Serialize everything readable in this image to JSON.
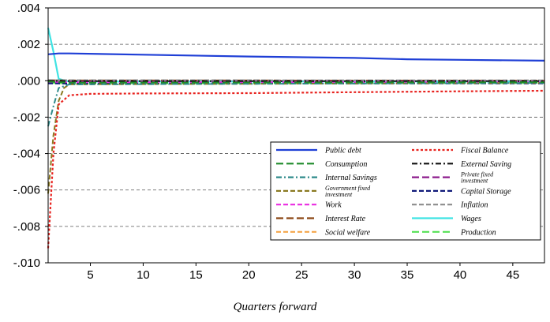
{
  "chart_data": {
    "type": "line",
    "xlabel": "Quarters forward",
    "ylabel": "",
    "title": "",
    "xlim": [
      1,
      48
    ],
    "ylim": [
      -0.01,
      0.004
    ],
    "xticks": [
      5,
      10,
      15,
      20,
      25,
      30,
      35,
      40,
      45
    ],
    "xtick_labels": [
      "5",
      "10",
      "15",
      "20",
      "25",
      "30",
      "35",
      "40",
      "45"
    ],
    "yticks": [
      0.004,
      0.002,
      0.0,
      -0.002,
      -0.004,
      -0.006,
      -0.008,
      -0.01
    ],
    "ytick_labels": [
      ".004",
      ".002",
      ".000",
      "-.002",
      "-.004",
      "-.006",
      "-.008",
      "-.010"
    ],
    "grid": "horizontal dashed",
    "legend_position": "bottom-right",
    "series": [
      {
        "name": "Public debt",
        "color": "#1f3fd6",
        "dash": "solid",
        "points": [
          [
            1,
            0.00145
          ],
          [
            2,
            0.0015
          ],
          [
            3,
            0.0015
          ],
          [
            10,
            0.00143
          ],
          [
            20,
            0.00133
          ],
          [
            30,
            0.00125
          ],
          [
            35,
            0.00118
          ],
          [
            40,
            0.00115
          ],
          [
            48,
            0.0011
          ]
        ]
      },
      {
        "name": "Fiscal Balance",
        "color": "#e8231f",
        "dash": "dot",
        "points": [
          [
            1,
            -0.0092
          ],
          [
            1.5,
            -0.004
          ],
          [
            2,
            -0.0013
          ],
          [
            3,
            -0.0008
          ],
          [
            5,
            -0.00072
          ],
          [
            10,
            -0.0007
          ],
          [
            20,
            -0.00068
          ],
          [
            30,
            -0.00063
          ],
          [
            40,
            -0.00058
          ],
          [
            48,
            -0.00055
          ]
        ]
      },
      {
        "name": "Consumption",
        "color": "#1f8a2a",
        "dash": "longdash",
        "points": [
          [
            1,
            -5e-05
          ],
          [
            3,
            -0.0001
          ],
          [
            48,
            -8e-05
          ]
        ]
      },
      {
        "name": "External Saving",
        "color": "#111111",
        "dash": "dashdot",
        "points": [
          [
            1,
            0.0
          ],
          [
            3,
            -2e-05
          ],
          [
            48,
            -2e-05
          ]
        ]
      },
      {
        "name": "Internal Savings",
        "color": "#2e8a8a",
        "dash": "dashdot",
        "points": [
          [
            1,
            -0.0025
          ],
          [
            1.5,
            -0.0014
          ],
          [
            2,
            -0.0004
          ],
          [
            3,
            -0.0002
          ],
          [
            48,
            -0.00012
          ]
        ]
      },
      {
        "name": "Private fixed investment",
        "color": "#8b1a8b",
        "dash": "longdash",
        "points": [
          [
            1,
            -5e-05
          ],
          [
            48,
            -4e-05
          ]
        ]
      },
      {
        "name": "Government fixed investment",
        "color": "#8a7a22",
        "dash": "dash",
        "points": [
          [
            1,
            -0.0062
          ],
          [
            1.5,
            -0.003
          ],
          [
            2,
            -0.0011
          ],
          [
            2.5,
            -0.0004
          ],
          [
            3,
            -0.0002
          ],
          [
            48,
            -0.00012
          ]
        ]
      },
      {
        "name": "Capital Storage",
        "color": "#101a7a",
        "dash": "dash",
        "points": [
          [
            1,
            -0.00015
          ],
          [
            3,
            -0.00016
          ],
          [
            48,
            -0.00015
          ]
        ]
      },
      {
        "name": "Work",
        "color": "#e92be0",
        "dash": "dash",
        "points": [
          [
            1,
            -8e-05
          ],
          [
            48,
            -8e-05
          ]
        ]
      },
      {
        "name": "Inflation",
        "color": "#8c8c8c",
        "dash": "dash",
        "points": [
          [
            1,
            3e-05
          ],
          [
            48,
            2e-05
          ]
        ]
      },
      {
        "name": "Interest Rate",
        "color": "#8b4513",
        "dash": "longdash",
        "points": [
          [
            1,
            2e-05
          ],
          [
            48,
            1e-05
          ]
        ]
      },
      {
        "name": "Wages",
        "color": "#3fe3e3",
        "dash": "solid",
        "points": [
          [
            1,
            0.0029
          ],
          [
            1.5,
            0.0016
          ],
          [
            2,
            0.0001
          ],
          [
            3,
            -5e-05
          ],
          [
            48,
            -4e-05
          ]
        ]
      },
      {
        "name": "Social welfare",
        "color": "#f5a64a",
        "dash": "dash",
        "points": [
          [
            1,
            -0.0001
          ],
          [
            48,
            -0.0001
          ]
        ]
      },
      {
        "name": "Production",
        "color": "#55e055",
        "dash": "longdash",
        "points": [
          [
            1,
            -0.00012
          ],
          [
            3,
            -0.00015
          ],
          [
            48,
            -0.00013
          ]
        ]
      }
    ]
  }
}
